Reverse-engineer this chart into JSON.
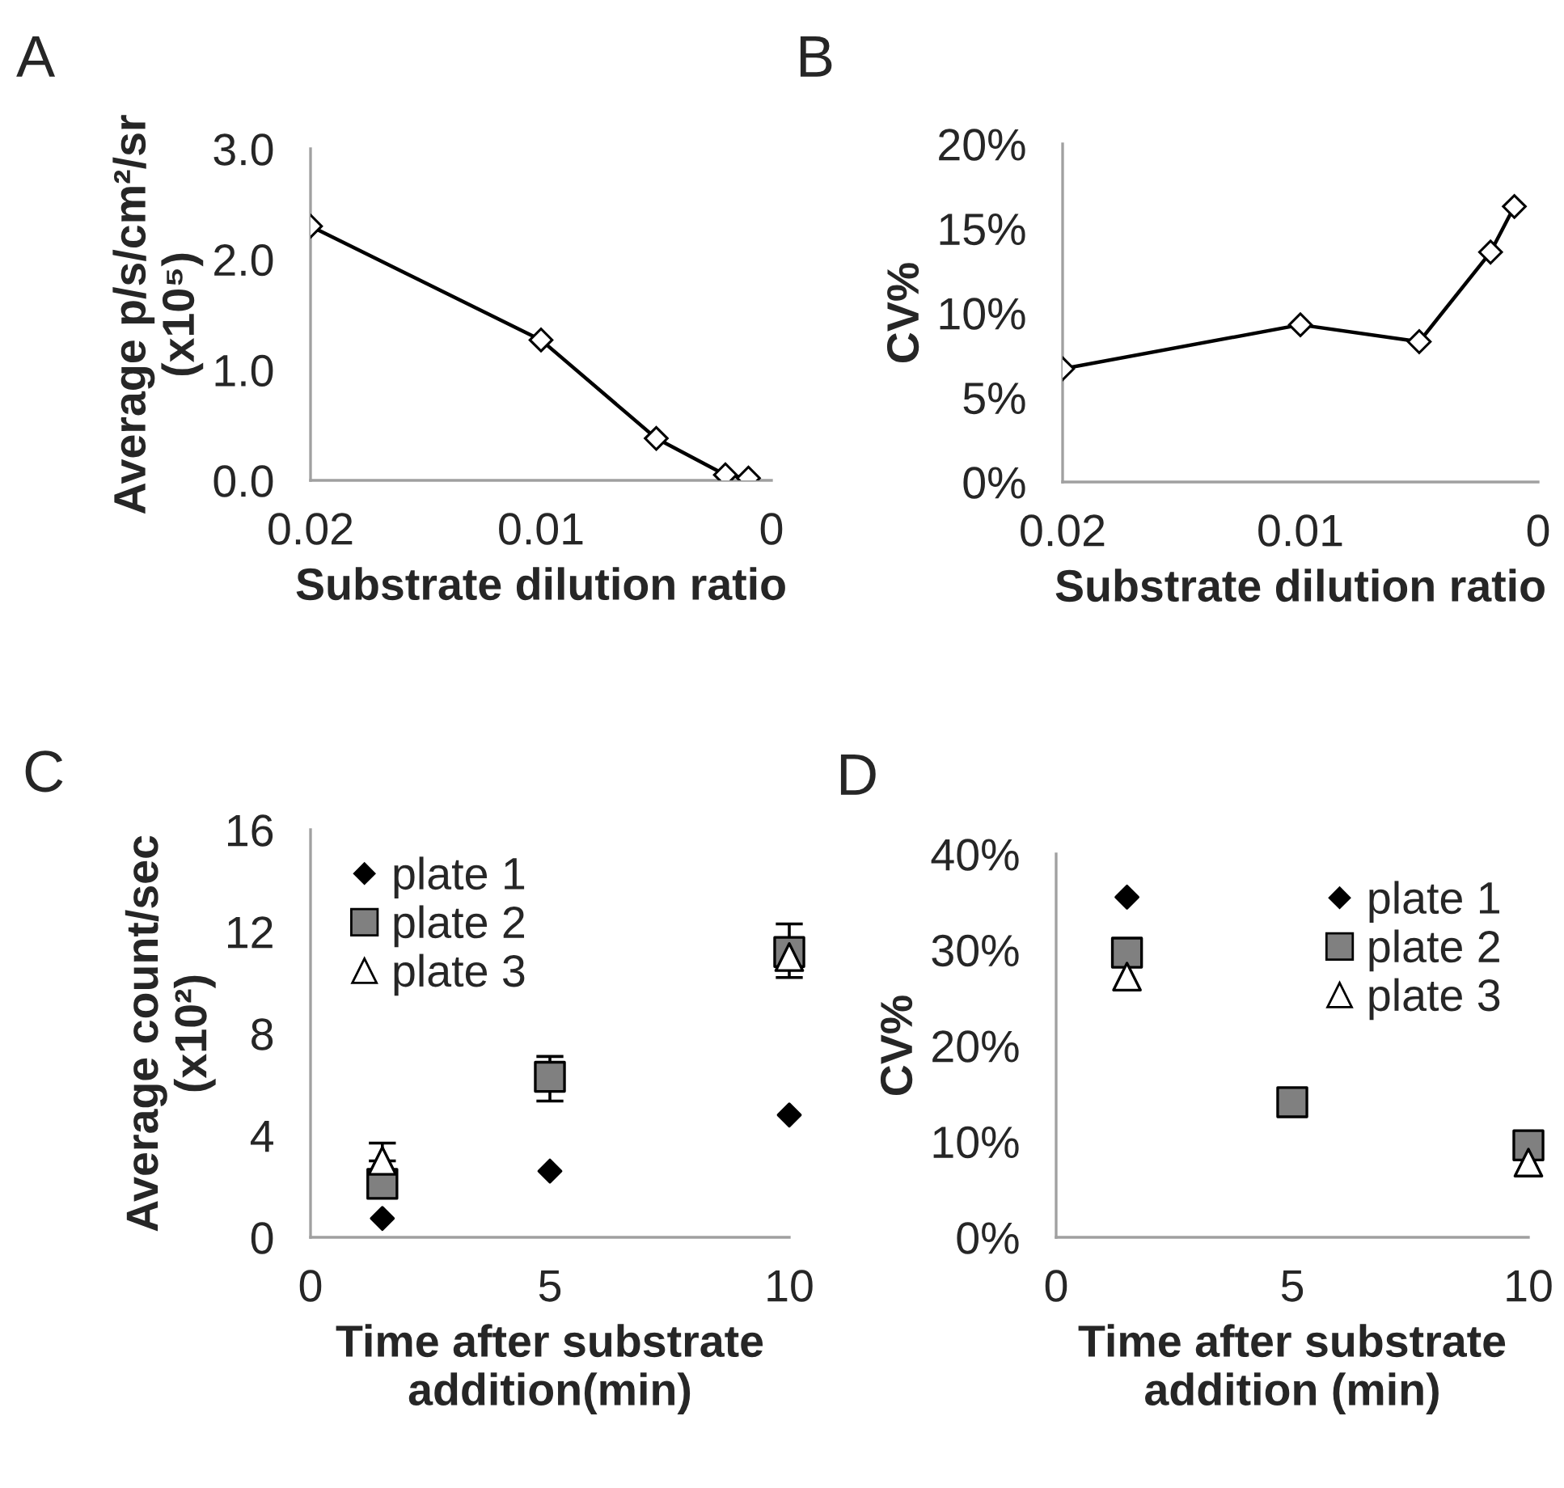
{
  "chart_data": [
    {
      "type": "line",
      "annotations": [
        "A"
      ],
      "xlabel": "Substrate dilution ratio",
      "ylabel": "Average p/s/cm²/sr\n(x10⁵)",
      "x": [
        0.02,
        0.01,
        0.005,
        0.002,
        0.001
      ],
      "series": [
        {
          "color": "#000000",
          "values": [
            2.3,
            1.27,
            0.38,
            0.05,
            0.02
          ]
        }
      ],
      "xlim": [
        0.02,
        0
      ],
      "xticks": [
        0.02,
        0.01,
        0
      ],
      "ylim": [
        0,
        3
      ],
      "yticks": [
        {
          "value": 0,
          "label": "0.0"
        },
        {
          "value": 1,
          "label": "1.0"
        },
        {
          "value": 2,
          "label": "2.0"
        },
        {
          "value": 3,
          "label": "3.0"
        }
      ],
      "marker": "diamond",
      "line_style": "solid"
    },
    {
      "type": "line",
      "annotations": [
        "B"
      ],
      "xlabel": "Substrate dilution ratio",
      "ylabel": "CV%",
      "x": [
        0.02,
        0.01,
        0.005,
        0.002,
        0.001
      ],
      "series": [
        {
          "color": "#000000",
          "values": [
            6.7,
            9.3,
            8.3,
            13.6,
            16.3
          ]
        }
      ],
      "xlim": [
        0.02,
        0
      ],
      "xticks": [
        0.02,
        0.01,
        0
      ],
      "ylim": [
        0,
        20
      ],
      "yticks": [
        {
          "value": 0,
          "label": "0%"
        },
        {
          "value": 5,
          "label": "5%"
        },
        {
          "value": 10,
          "label": "10%"
        },
        {
          "value": 15,
          "label": "15%"
        },
        {
          "value": 20,
          "label": "20%"
        }
      ],
      "marker": "diamond",
      "line_style": "solid"
    },
    {
      "type": "scatter",
      "annotations": [
        "C"
      ],
      "xlabel": "Time after substrate\naddition(min)",
      "ylabel": "Average count/sec\n(x10²)",
      "x": [
        1.5,
        5,
        10
      ],
      "series": [
        {
          "name": "plate 1",
          "color": "#000000",
          "marker": "diamond",
          "values": [
            0.74,
            2.6,
            4.8
          ]
        },
        {
          "name": "plate 2",
          "color": "#808080",
          "marker": "square",
          "values": [
            2.1,
            6.3,
            11.2
          ],
          "errors": [
            null,
            [
              5.35,
              7.1
            ],
            [
              10.2,
              12.3
            ]
          ]
        },
        {
          "name": "plate 3",
          "color": "#ffffff",
          "marker": "triangle",
          "values": [
            3.0,
            null,
            11.0
          ],
          "errors": [
            [
              3.0,
              3.7
            ],
            null,
            null
          ]
        }
      ],
      "xlim": [
        0,
        10
      ],
      "xticks": [
        0,
        5,
        10
      ],
      "ylim": [
        0,
        16
      ],
      "yticks": [
        0,
        4,
        8,
        12,
        16
      ],
      "legend": "top left"
    },
    {
      "type": "scatter",
      "annotations": [
        "D"
      ],
      "xlabel": "Time after substrate\naddition (min)",
      "ylabel": "CV%",
      "x": [
        1.5,
        5,
        10
      ],
      "series": [
        {
          "name": "plate 1",
          "color": "#000000",
          "marker": "diamond",
          "values": [
            35.5,
            null,
            null
          ]
        },
        {
          "name": "plate 2",
          "color": "#808080",
          "marker": "square",
          "values": [
            29.7,
            14.1,
            9.6
          ]
        },
        {
          "name": "plate 3",
          "color": "#ffffff",
          "marker": "triangle",
          "values": [
            27.2,
            null,
            7.8
          ]
        }
      ],
      "xlim": [
        0,
        10
      ],
      "xticks": [
        0,
        5,
        10
      ],
      "ylim": [
        0,
        40
      ],
      "yticks": [
        {
          "value": 0,
          "label": "0%"
        },
        {
          "value": 10,
          "label": "10%"
        },
        {
          "value": 20,
          "label": "20%"
        },
        {
          "value": 30,
          "label": "30%"
        },
        {
          "value": 40,
          "label": "40%"
        }
      ],
      "legend": "top right"
    }
  ]
}
